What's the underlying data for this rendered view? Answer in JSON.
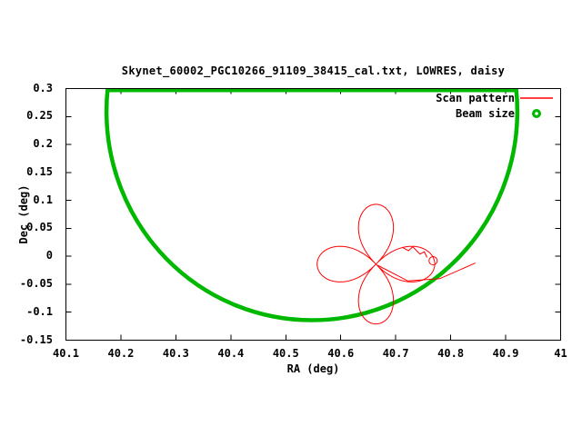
{
  "colors": {
    "scan_pattern": "#ff0000",
    "beam_size": "#00b800",
    "axis": "#000000",
    "background": "#ffffff"
  },
  "chart_data": {
    "type": "line",
    "title": "Skynet_60002_PGC10266_91109_38415_cal.txt, LOWRES, daisy",
    "xlabel": "RA (deg)",
    "ylabel": "Dec (deg)",
    "xlim": [
      40.1,
      41.0
    ],
    "ylim": [
      -0.15,
      0.3
    ],
    "grid": false,
    "legend_position": "top-right",
    "xtick_values": [
      40.1,
      40.2,
      40.3,
      40.4,
      40.5,
      40.6,
      40.7,
      40.8,
      40.9,
      41.0
    ],
    "xtick_labels": [
      "40.1",
      "40.2",
      "40.3",
      "40.4",
      "40.5",
      "40.6",
      "40.7",
      "40.8",
      "40.9",
      "41"
    ],
    "ytick_values": [
      -0.15,
      -0.1,
      -0.05,
      0,
      0.05,
      0.1,
      0.15,
      0.2,
      0.25,
      0.3
    ],
    "ytick_labels": [
      "-0.15",
      "-0.1",
      "-0.05",
      "0",
      "0.05",
      "0.1",
      "0.15",
      "0.2",
      "0.25",
      "0.3"
    ],
    "legend": [
      {
        "label": "Scan pattern",
        "color": "#ff0000",
        "sample": "line"
      },
      {
        "label": "Beam size",
        "color": "#00b800",
        "sample": "point"
      }
    ],
    "series": [
      {
        "name": "Scan pattern",
        "type": "daisy-scan",
        "color": "#ff0000",
        "line_width": 1,
        "daisy": {
          "center_ra": 40.664,
          "center_dec": -0.014,
          "petal_radius": 0.107,
          "num_petals": 4,
          "rotation_deg": 0,
          "petal_shape_exp": 0.8
        },
        "entry_path": [
          [
            40.845,
            -0.012
          ],
          [
            40.78,
            -0.04
          ],
          [
            40.722,
            -0.044
          ],
          [
            40.667,
            -0.016
          ]
        ],
        "glitch_loop": {
          "center_ra": 40.768,
          "center_dec": -0.008,
          "radius": 0.0075
        },
        "wiggle": [
          [
            40.712,
            0.016
          ],
          [
            40.723,
            0.01
          ],
          [
            40.731,
            0.017
          ],
          [
            40.744,
            0.004
          ],
          [
            40.752,
            0.008
          ],
          [
            40.757,
            -0.002
          ]
        ]
      },
      {
        "name": "Beam size",
        "type": "circle",
        "color": "#00b800",
        "line_width": 4.5,
        "center_ra": 40.5475,
        "center_dec": 0.2594,
        "radius_deg": 0.3737,
        "clipped_at_dec": 0.3
      }
    ]
  }
}
